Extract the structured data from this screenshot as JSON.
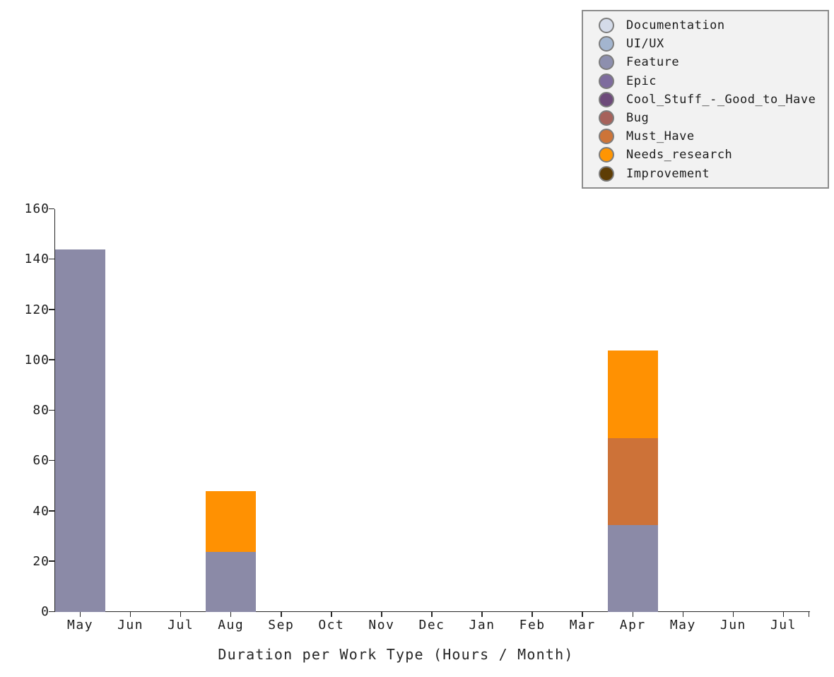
{
  "chart_data": {
    "type": "bar",
    "stacked": true,
    "title": "Duration per Work Type (Hours / Month)",
    "xlabel": "",
    "ylabel": "",
    "categories": [
      "May",
      "Jun",
      "Jul",
      "Aug",
      "Sep",
      "Oct",
      "Nov",
      "Dec",
      "Jan",
      "Feb",
      "Mar",
      "Apr",
      "May",
      "Jun",
      "Jul"
    ],
    "series": [
      {
        "name": "Feature",
        "color": "#8b8aa7",
        "values": [
          144,
          0,
          0,
          24,
          0,
          0,
          0,
          0,
          0,
          0,
          0,
          34.5,
          0,
          0,
          0
        ]
      },
      {
        "name": "Must_Have",
        "color": "#cd7238",
        "values": [
          0,
          0,
          0,
          0,
          0,
          0,
          0,
          0,
          0,
          0,
          0,
          34.5,
          0,
          0,
          0
        ]
      },
      {
        "name": "Needs_research",
        "color": "#ff9102",
        "values": [
          0,
          0,
          0,
          24,
          0,
          0,
          0,
          0,
          0,
          0,
          0,
          35,
          0,
          0,
          0
        ]
      }
    ],
    "ylim": [
      0,
      160
    ],
    "yticks": [
      0,
      20,
      40,
      60,
      80,
      100,
      120,
      140,
      160
    ],
    "grid": false,
    "legend_position": "top-right"
  },
  "legend": {
    "marker_border": "#7c7c7c",
    "items": [
      {
        "label": "Documentation",
        "color": "#d4dbe9"
      },
      {
        "label": "UI/UX",
        "color": "#a3b5cf"
      },
      {
        "label": "Feature",
        "color": "#8d8fae"
      },
      {
        "label": "Epic",
        "color": "#7e6c9e"
      },
      {
        "label": "Cool_Stuff_-_Good_to_Have",
        "color": "#6d4a7a"
      },
      {
        "label": "Bug",
        "color": "#a6625b"
      },
      {
        "label": "Must_Have",
        "color": "#cd7438"
      },
      {
        "label": "Needs_research",
        "color": "#ff9502"
      },
      {
        "label": "Improvement",
        "color": "#5e3d05"
      }
    ]
  },
  "colors": {
    "background": "#ffffff",
    "axis": "#262626",
    "text": "#1c1c1c",
    "legend_background": "#f2f2f2",
    "legend_border": "#8c8c8c"
  }
}
